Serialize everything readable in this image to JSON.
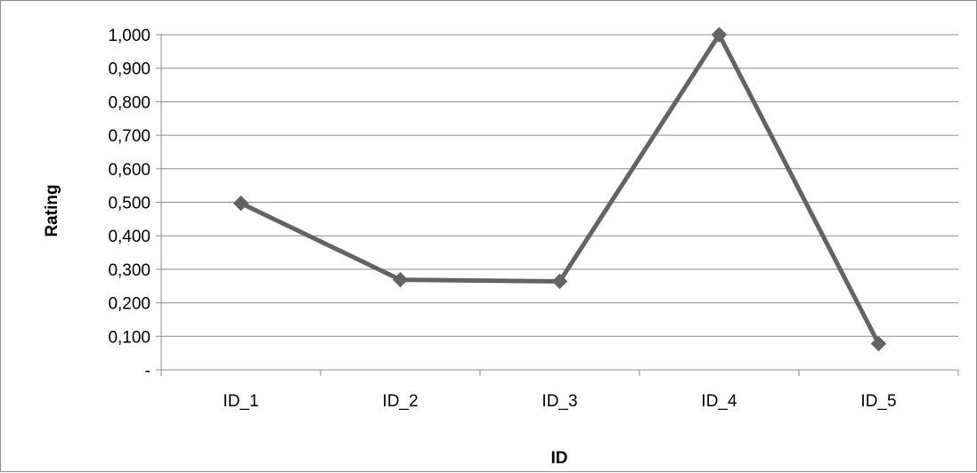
{
  "chart_data": {
    "type": "line",
    "title": "",
    "xlabel": "ID",
    "ylabel": "Rating",
    "categories": [
      "ID_1",
      "ID_2",
      "ID_3",
      "ID_4",
      "ID_5"
    ],
    "series": [
      {
        "values": [
          0.497,
          0.269,
          0.264,
          1.0,
          0.078
        ]
      }
    ],
    "ylim": [
      0,
      1
    ],
    "yticks": [
      "-",
      "0,100",
      "0,200",
      "0,300",
      "0,400",
      "0,500",
      "0,600",
      "0,700",
      "0,800",
      "0,900",
      "1,000"
    ],
    "grid": true,
    "legend": "none",
    "colors": {
      "line": "#636363",
      "grid": "#8c8c8c",
      "axis": "#8c8c8c"
    }
  }
}
